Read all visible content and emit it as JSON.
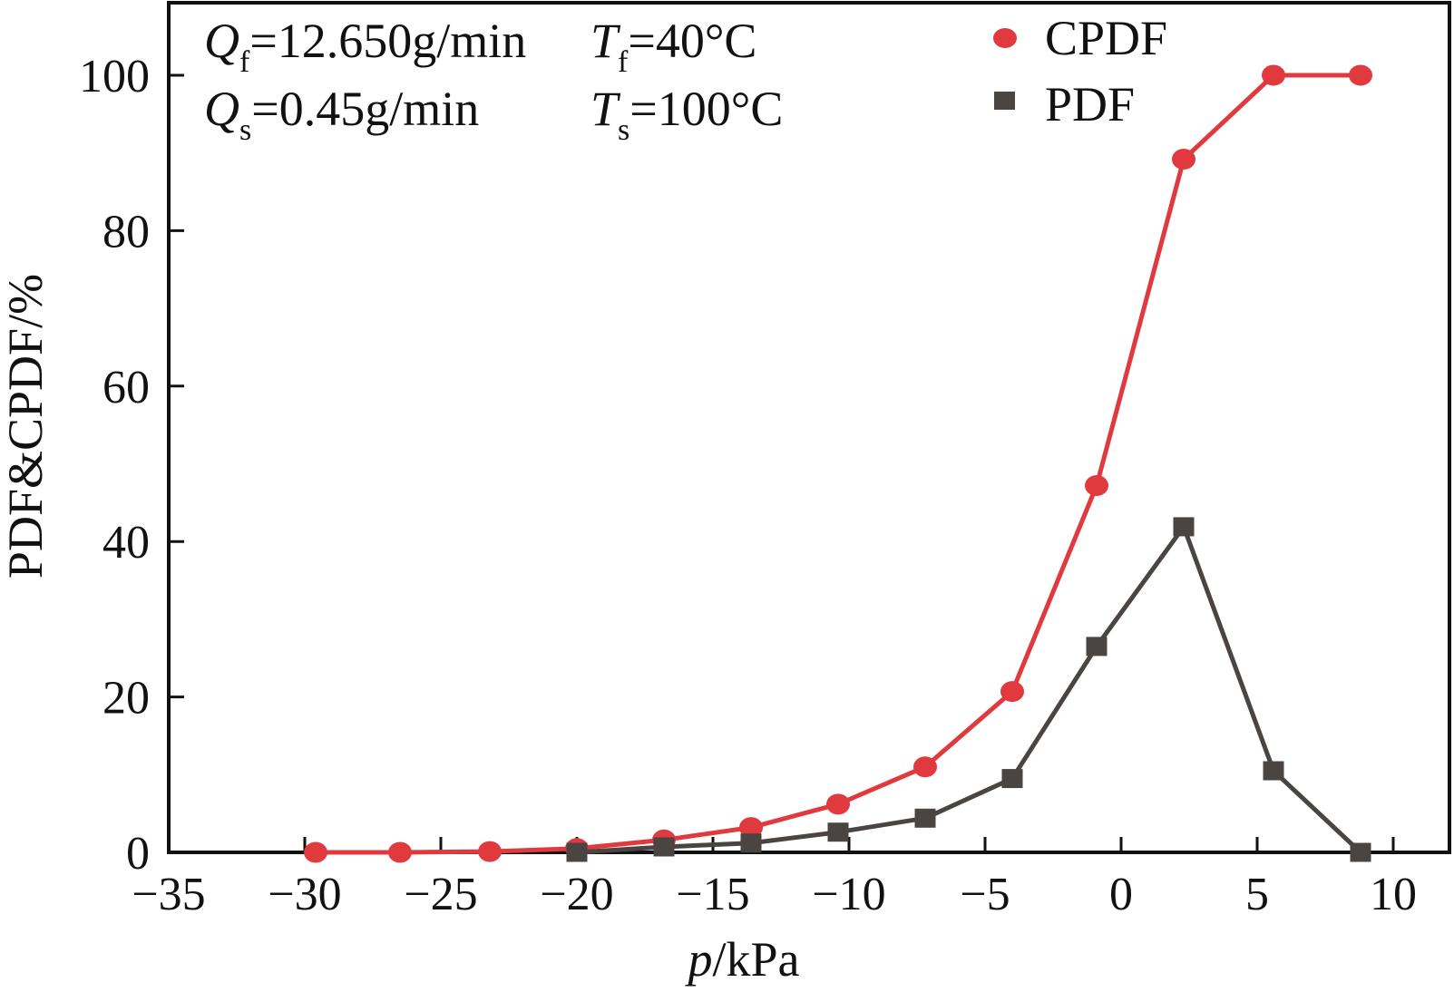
{
  "chart_data": {
    "type": "line",
    "title": "",
    "xlabel_italic": "p",
    "xlabel_rest": "/kPa",
    "ylabel": "PDF&CPDF/%",
    "xlim": [
      -35,
      12
    ],
    "ylim": [
      0,
      110
    ],
    "xticks": [
      -35,
      -30,
      -25,
      -20,
      -15,
      -10,
      -5,
      0,
      5,
      10
    ],
    "xtick_labels": [
      "−35",
      "−30",
      "−25",
      "−20",
      "−15",
      "−10",
      "−5",
      "0",
      "5",
      "10"
    ],
    "yticks": [
      0,
      20,
      40,
      60,
      80,
      100
    ],
    "ytick_labels": [
      "0",
      "20",
      "40",
      "60",
      "80",
      "100"
    ],
    "grid": false,
    "legend_position": "top-right",
    "series": [
      {
        "name": "CPDF",
        "color": "#e0393e",
        "marker": "circle",
        "x": [
          -29.6,
          -26.5,
          -23.2,
          -20.0,
          -16.8,
          -13.6,
          -10.4,
          -7.2,
          -4.0,
          -0.9,
          2.3,
          5.6,
          8.8
        ],
        "values": [
          0.0,
          0.0,
          0.1,
          0.5,
          1.6,
          3.2,
          6.2,
          11.0,
          20.7,
          47.2,
          89.2,
          100.0,
          100.0
        ]
      },
      {
        "name": "PDF",
        "color": "#4a4442",
        "marker": "square",
        "x": [
          -20.0,
          -16.8,
          -13.6,
          -10.4,
          -7.2,
          -4.0,
          -0.9,
          2.3,
          5.6,
          8.8
        ],
        "values": [
          0.0,
          0.7,
          1.2,
          2.6,
          4.4,
          9.5,
          26.5,
          41.9,
          10.5,
          0.0
        ]
      }
    ],
    "annotations": {
      "qf_symbol": "Q",
      "qf_sub": "f",
      "qf_value": "=12.650g/min",
      "tf_symbol": "T",
      "tf_sub": "f",
      "tf_value": "=40°C",
      "qs_symbol": "Q",
      "qs_sub": "s",
      "qs_value": "=0.45g/min",
      "ts_symbol": "T",
      "ts_sub": "s",
      "ts_value": "=100°C"
    }
  }
}
